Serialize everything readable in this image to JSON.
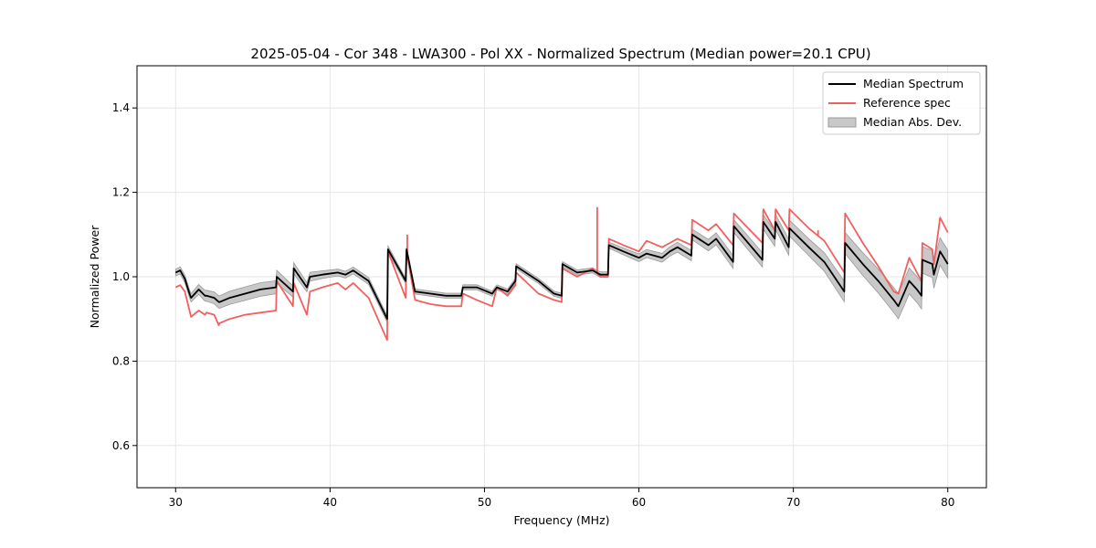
{
  "chart_data": {
    "type": "line",
    "title": "2025-05-04 - Cor 348 - LWA300 - Pol XX - Normalized Spectrum (Median power=20.1 CPU)",
    "xlabel": "Frequency (MHz)",
    "ylabel": "Normalized Power",
    "xlim": [
      27.5,
      82.5
    ],
    "ylim": [
      0.5,
      1.5
    ],
    "xticks": [
      30,
      40,
      50,
      60,
      70,
      80
    ],
    "yticks": [
      0.6,
      0.8,
      1.0,
      1.2,
      1.4
    ],
    "xtick_labels": [
      "30",
      "40",
      "50",
      "60",
      "70",
      "80"
    ],
    "ytick_labels": [
      "0.6",
      "0.8",
      "1.0",
      "1.2",
      "1.4"
    ],
    "grid": true,
    "legend_position": "top-right",
    "legend": [
      "Median Spectrum",
      "Reference spec",
      "Median Abs. Dev."
    ],
    "colors": {
      "median": "#000000",
      "reference": "#f0605e",
      "mad_fill": "#c8c8c8",
      "mad_edge": "#9a9a9a",
      "grid": "#e6e6e6"
    },
    "series": [
      {
        "name": "Median Spectrum",
        "x": [
          30.0,
          30.3,
          30.6,
          30.9,
          31.0,
          31.5,
          31.9,
          32.0,
          32.5,
          32.8,
          32.85,
          33.5,
          34.5,
          35.5,
          36.5,
          36.55,
          37.6,
          37.65,
          38.5,
          38.7,
          39.5,
          40.5,
          41.0,
          41.5,
          42.5,
          43.7,
          43.75,
          44.9,
          44.95,
          45.5,
          46.5,
          47.5,
          48.5,
          48.6,
          49.5,
          50.5,
          50.8,
          51.5,
          52.0,
          52.05,
          53.5,
          54.5,
          55.0,
          55.05,
          56.0,
          57.0,
          57.5,
          58.0,
          58.05,
          59.0,
          60.0,
          60.5,
          61.5,
          62.0,
          62.5,
          63.4,
          63.45,
          64.5,
          65.0,
          66.1,
          66.15,
          68.0,
          68.05,
          68.8,
          68.85,
          69.7,
          69.75,
          71.0,
          72.0,
          73.3,
          73.35,
          74.5,
          75.5,
          76.5,
          76.8,
          77.5,
          78.0,
          78.3,
          78.35,
          79.0,
          79.1,
          79.5,
          80.0
        ],
        "y": [
          1.01,
          1.015,
          0.995,
          0.96,
          0.95,
          0.97,
          0.955,
          0.955,
          0.95,
          0.94,
          0.94,
          0.95,
          0.96,
          0.97,
          0.975,
          1.0,
          0.965,
          1.02,
          0.975,
          1.0,
          1.005,
          1.01,
          1.005,
          1.015,
          0.99,
          0.9,
          1.065,
          0.99,
          1.065,
          0.965,
          0.96,
          0.955,
          0.955,
          0.975,
          0.975,
          0.96,
          0.975,
          0.965,
          0.99,
          1.025,
          0.99,
          0.96,
          0.955,
          1.03,
          1.01,
          1.015,
          1.005,
          1.005,
          1.075,
          1.06,
          1.045,
          1.055,
          1.045,
          1.06,
          1.07,
          1.05,
          1.1,
          1.075,
          1.09,
          1.035,
          1.12,
          1.04,
          1.13,
          1.09,
          1.13,
          1.07,
          1.115,
          1.07,
          1.035,
          0.965,
          1.08,
          1.03,
          0.99,
          0.945,
          0.93,
          0.99,
          0.97,
          0.955,
          1.04,
          1.03,
          1.005,
          1.06,
          1.03
        ]
      },
      {
        "name": "Reference spec",
        "x": [
          30.0,
          30.3,
          30.6,
          30.9,
          31.0,
          31.5,
          31.9,
          32.0,
          32.5,
          32.8,
          32.85,
          33.5,
          34.5,
          35.5,
          36.5,
          36.55,
          37.6,
          37.65,
          38.5,
          38.7,
          39.5,
          40.5,
          41.0,
          41.5,
          42.5,
          43.7,
          43.75,
          44.9,
          44.95,
          45.5,
          46.5,
          47.5,
          48.5,
          48.6,
          49.5,
          50.5,
          50.8,
          51.5,
          52.0,
          52.05,
          53.5,
          54.5,
          55.0,
          55.05,
          56.0,
          57.0,
          57.5,
          58.0,
          58.05,
          59.0,
          60.0,
          60.5,
          61.5,
          62.0,
          62.5,
          63.4,
          63.45,
          64.5,
          65.0,
          66.1,
          66.15,
          68.0,
          68.05,
          68.8,
          68.85,
          69.7,
          69.75,
          71.0,
          72.0,
          73.3,
          73.35,
          74.5,
          75.5,
          76.5,
          76.8,
          77.5,
          78.0,
          78.3,
          78.35,
          79.0,
          79.1,
          79.5,
          80.0
        ],
        "y": [
          0.975,
          0.98,
          0.965,
          0.92,
          0.905,
          0.92,
          0.91,
          0.915,
          0.91,
          0.885,
          0.89,
          0.9,
          0.91,
          0.915,
          0.92,
          0.99,
          0.93,
          0.985,
          0.91,
          0.965,
          0.975,
          0.985,
          0.97,
          0.985,
          0.95,
          0.85,
          1.06,
          0.95,
          1.06,
          0.945,
          0.935,
          0.93,
          0.93,
          0.96,
          0.945,
          0.93,
          0.975,
          0.955,
          0.98,
          1.01,
          0.96,
          0.945,
          0.94,
          1.02,
          1.0,
          1.02,
          1.0,
          1.0,
          1.09,
          1.075,
          1.06,
          1.085,
          1.07,
          1.08,
          1.09,
          1.075,
          1.135,
          1.11,
          1.125,
          1.075,
          1.15,
          1.08,
          1.16,
          1.11,
          1.16,
          1.11,
          1.16,
          1.115,
          1.085,
          1.01,
          1.15,
          1.08,
          1.025,
          0.965,
          0.96,
          1.045,
          1.01,
          0.99,
          1.08,
          1.065,
          1.03,
          1.14,
          1.105
        ]
      }
    ],
    "spikes": [
      {
        "series": "Reference spec",
        "x": 45.0,
        "y": 1.1
      },
      {
        "series": "Reference spec",
        "x": 57.3,
        "y": 1.165
      },
      {
        "series": "Reference spec",
        "x": 71.6,
        "y": 1.11
      }
    ],
    "mad_band": {
      "name": "Median Abs. Dev.",
      "x": [
        30.0,
        31.0,
        32.0,
        33.0,
        34.0,
        35.0,
        36.0,
        37.0,
        38.0,
        39.0,
        40.0,
        41.0,
        42.0,
        43.0,
        44.0,
        45.0,
        46.0,
        47.0,
        48.0,
        49.0,
        50.0,
        51.0,
        52.0,
        53.0,
        54.0,
        55.0,
        56.0,
        57.0,
        58.0,
        59.0,
        60.0,
        61.0,
        62.0,
        63.0,
        64.0,
        65.0,
        66.0,
        67.0,
        68.0,
        69.0,
        70.0,
        71.0,
        72.0,
        73.0,
        74.0,
        75.0,
        76.0,
        77.0,
        78.0,
        79.0,
        80.0
      ],
      "halfwidth": [
        0.008,
        0.01,
        0.013,
        0.015,
        0.016,
        0.016,
        0.016,
        0.015,
        0.012,
        0.01,
        0.008,
        0.008,
        0.008,
        0.008,
        0.008,
        0.006,
        0.006,
        0.006,
        0.006,
        0.006,
        0.006,
        0.006,
        0.006,
        0.006,
        0.006,
        0.006,
        0.006,
        0.006,
        0.007,
        0.008,
        0.009,
        0.01,
        0.011,
        0.012,
        0.013,
        0.014,
        0.015,
        0.016,
        0.017,
        0.018,
        0.019,
        0.02,
        0.022,
        0.024,
        0.026,
        0.028,
        0.029,
        0.03,
        0.031,
        0.032,
        0.033
      ]
    }
  }
}
